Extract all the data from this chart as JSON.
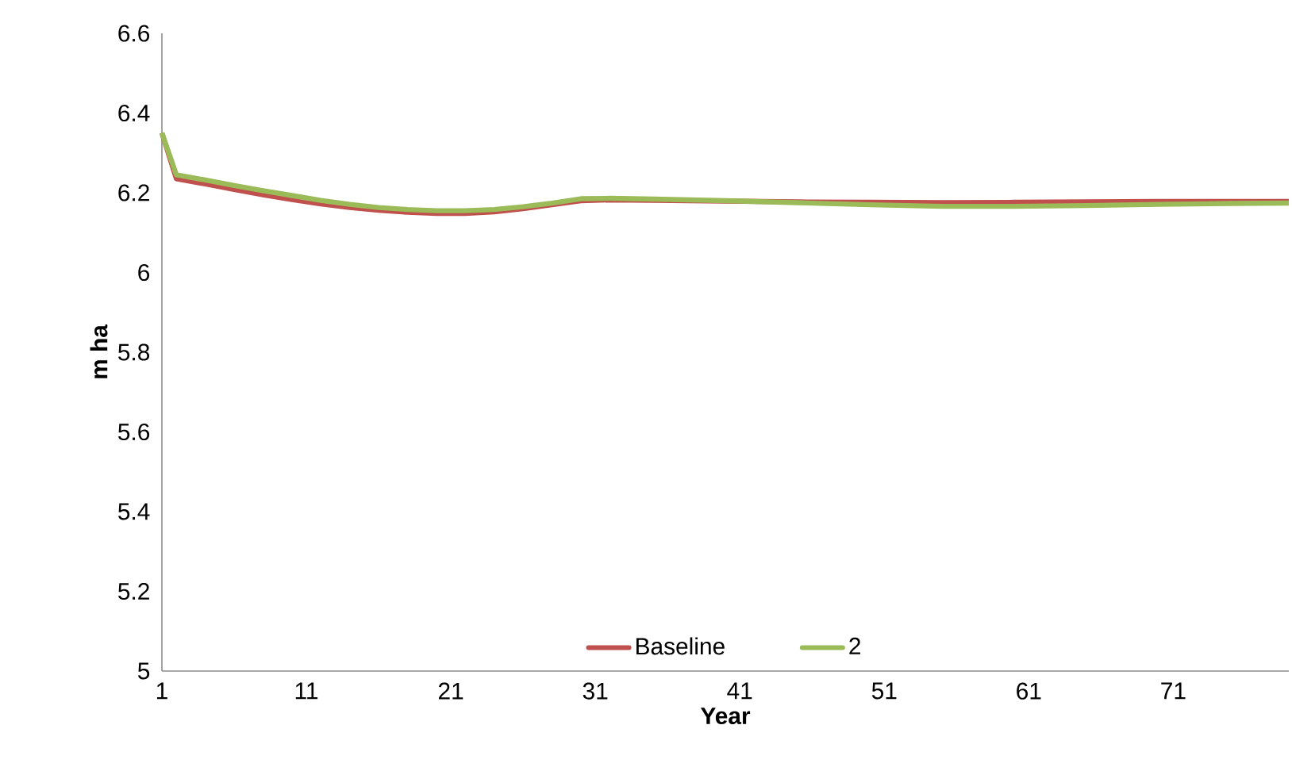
{
  "chart_data": {
    "type": "line",
    "xlabel": "Year",
    "ylabel": "m ha",
    "series": [
      {
        "name": "Baseline",
        "color": "#c0504d",
        "x": [
          1,
          2,
          4,
          6,
          8,
          10,
          12,
          14,
          16,
          18,
          20,
          22,
          24,
          26,
          28,
          30,
          32,
          35,
          40,
          45,
          50,
          55,
          60,
          65,
          70,
          75,
          79
        ],
        "values": [
          6.35,
          6.235,
          6.222,
          6.208,
          6.195,
          6.183,
          6.172,
          6.163,
          6.156,
          6.151,
          6.148,
          6.148,
          6.152,
          6.16,
          6.17,
          6.18,
          6.182,
          6.181,
          6.179,
          6.177,
          6.176,
          6.175,
          6.176,
          6.177,
          6.178,
          6.178,
          6.178
        ]
      },
      {
        "name": "2",
        "color": "#9bbb59",
        "x": [
          1,
          2,
          4,
          6,
          8,
          10,
          12,
          14,
          16,
          18,
          20,
          22,
          24,
          26,
          28,
          30,
          32,
          35,
          40,
          45,
          50,
          55,
          60,
          65,
          70,
          75,
          79
        ],
        "values": [
          6.35,
          6.245,
          6.232,
          6.218,
          6.205,
          6.193,
          6.181,
          6.171,
          6.163,
          6.158,
          6.155,
          6.155,
          6.158,
          6.165,
          6.174,
          6.185,
          6.186,
          6.184,
          6.18,
          6.175,
          6.17,
          6.166,
          6.166,
          6.168,
          6.171,
          6.173,
          6.174
        ]
      }
    ],
    "xlim": [
      1,
      79
    ],
    "xticks": [
      1,
      11,
      21,
      31,
      41,
      51,
      61,
      71
    ],
    "ylim": [
      5,
      6.6
    ],
    "yticks": [
      5,
      5.2,
      5.4,
      5.6,
      5.8,
      6,
      6.2,
      6.4,
      6.6
    ],
    "legend": "bottom",
    "grid": false,
    "marker": "none",
    "line_style": "solid"
  }
}
